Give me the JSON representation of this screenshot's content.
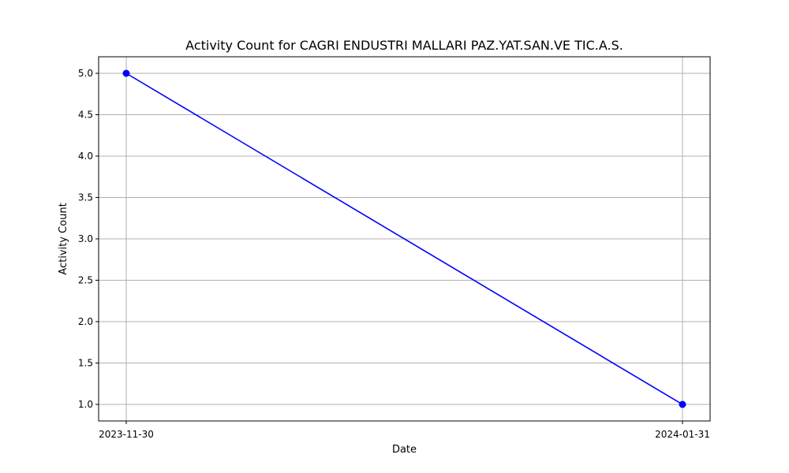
{
  "chart_data": {
    "type": "line",
    "title": "Activity Count for CAGRI ENDUSTRI MALLARI PAZ.YAT.SAN.VE TIC.A.S.",
    "xlabel": "Date",
    "ylabel": "Activity Count",
    "x": [
      "2023-11-30",
      "2024-01-31"
    ],
    "x_tick_labels": [
      "2023-11-30",
      "2024-01-31"
    ],
    "series": [
      {
        "values": [
          5.0,
          1.0
        ],
        "color": "#0000ff",
        "marker": "circle"
      }
    ],
    "ylim": [
      0.8,
      5.2
    ],
    "y_ticks": [
      "1.0",
      "1.5",
      "2.0",
      "2.5",
      "3.0",
      "3.5",
      "4.0",
      "4.5",
      "5.0"
    ],
    "grid": true
  }
}
